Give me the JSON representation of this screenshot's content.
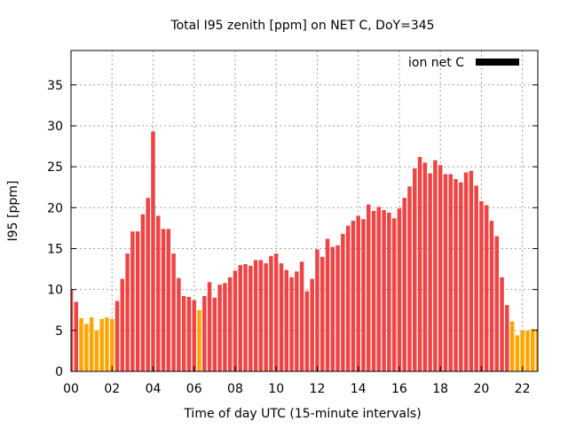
{
  "chart_data": {
    "type": "bar",
    "title": "Total I95 zenith [ppm] on NET C, DoY=345",
    "xlabel": "Time of day UTC (15-minute intervals)",
    "ylabel": "I95 [ppm]",
    "xlim": [
      0,
      22.75
    ],
    "ylim": [
      0,
      39.2
    ],
    "x_ticks": [
      "00",
      "02",
      "04",
      "06",
      "08",
      "10",
      "12",
      "14",
      "16",
      "18",
      "20",
      "22"
    ],
    "y_ticks": [
      "0",
      "5",
      "10",
      "15",
      "20",
      "25",
      "30",
      "35"
    ],
    "grid": true,
    "legend": {
      "position": "top-right",
      "label": "ion net C",
      "color": "#000000"
    },
    "bar_interval_hours": 0.25,
    "series": [
      {
        "name": "ion net C",
        "values": [
          10.0,
          8.5,
          6.5,
          5.8,
          6.6,
          5.0,
          6.4,
          6.6,
          6.4,
          8.6,
          11.3,
          14.4,
          17.1,
          17.1,
          19.2,
          21.2,
          29.3,
          19.0,
          17.4,
          17.4,
          14.4,
          11.4,
          9.2,
          9.1,
          8.7,
          7.5,
          9.2,
          10.9,
          9.0,
          10.6,
          10.8,
          11.5,
          12.3,
          13.0,
          13.1,
          12.9,
          13.6,
          13.6,
          13.2,
          14.1,
          14.4,
          13.2,
          12.4,
          11.5,
          12.2,
          13.4,
          9.8,
          11.3,
          14.9,
          14.0,
          16.2,
          15.2,
          15.4,
          16.8,
          17.8,
          18.4,
          19.0,
          18.6,
          20.4,
          19.6,
          20.1,
          19.7,
          19.4,
          18.7,
          19.9,
          21.2,
          22.6,
          24.8,
          26.2,
          25.5,
          24.2,
          25.8,
          25.2,
          24.1,
          24.1,
          23.5,
          23.1,
          24.3,
          24.5,
          22.7,
          20.8,
          20.3,
          18.4,
          16.5,
          11.5,
          8.1,
          6.1,
          4.4,
          5.0,
          5.0,
          5.2,
          5.2
        ],
        "colors": [
          "r",
          "r",
          "o",
          "o",
          "o",
          "o",
          "o",
          "o",
          "o",
          "r",
          "r",
          "r",
          "r",
          "r",
          "r",
          "r",
          "r",
          "r",
          "r",
          "r",
          "r",
          "r",
          "r",
          "r",
          "r",
          "o",
          "r",
          "r",
          "r",
          "r",
          "r",
          "r",
          "r",
          "r",
          "r",
          "r",
          "r",
          "r",
          "r",
          "r",
          "r",
          "r",
          "r",
          "r",
          "r",
          "r",
          "r",
          "r",
          "r",
          "r",
          "r",
          "r",
          "r",
          "r",
          "r",
          "r",
          "r",
          "r",
          "r",
          "r",
          "r",
          "r",
          "r",
          "r",
          "r",
          "r",
          "r",
          "r",
          "r",
          "r",
          "r",
          "r",
          "r",
          "r",
          "r",
          "r",
          "r",
          "r",
          "r",
          "r",
          "r",
          "r",
          "r",
          "r",
          "r",
          "r",
          "o",
          "o",
          "o",
          "o",
          "o",
          "o"
        ]
      }
    ],
    "palette": {
      "r": "#ef4444",
      "o": "#ffa500"
    }
  }
}
